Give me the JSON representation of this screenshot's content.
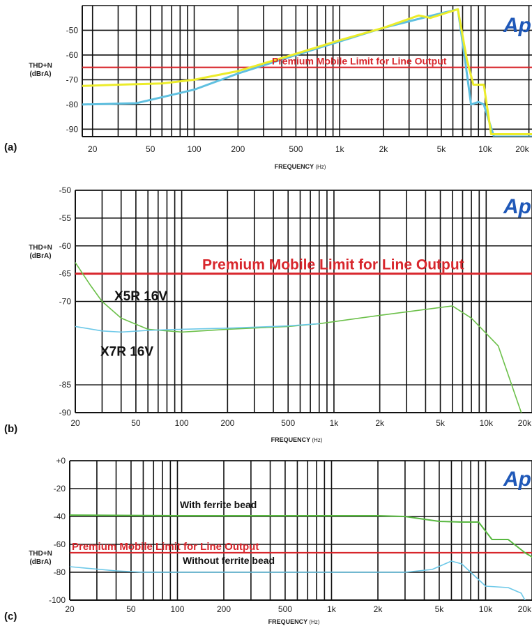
{
  "chart_data": [
    {
      "panel_label": "(a)",
      "type": "line",
      "log_x": true,
      "xlim": [
        17,
        21000
      ],
      "ylim": [
        -93,
        -40
      ],
      "xticks": [
        {
          "v": 20,
          "t": "20"
        },
        {
          "v": 50,
          "t": "50"
        },
        {
          "v": 100,
          "t": "100"
        },
        {
          "v": 200,
          "t": "200"
        },
        {
          "v": 500,
          "t": "500"
        },
        {
          "v": 1000,
          "t": "1k"
        },
        {
          "v": 2000,
          "t": "2k"
        },
        {
          "v": 5000,
          "t": "5k"
        },
        {
          "v": 10000,
          "t": "10k"
        },
        {
          "v": 20000,
          "t": "20k"
        }
      ],
      "yticks": [
        {
          "v": -50,
          "t": "-50"
        },
        {
          "v": -60,
          "t": "-60"
        },
        {
          "v": -70,
          "t": "-70"
        },
        {
          "v": -80,
          "t": "-80"
        },
        {
          "v": -90,
          "t": "-90"
        }
      ],
      "ylabel_line1": "THD+N",
      "ylabel_line2": "(dBrA)",
      "xlabel_main": "FREQUENCY",
      "xlabel_unit": "(Hz)",
      "logo": "Ap",
      "limit": {
        "value": -65,
        "label": "Premium Mobile Limit for Line Output",
        "label_x": 390,
        "label_size": 14
      },
      "series": [
        {
          "color": "#5fc0e0",
          "width": 3,
          "points": [
            [
              17,
              -80
            ],
            [
              40,
              -79.5
            ],
            [
              100,
              -74
            ],
            [
              200,
              -67.5
            ],
            [
              500,
              -60
            ],
            [
              1000,
              -54.5
            ],
            [
              2000,
              -49
            ],
            [
              4000,
              -44.5
            ],
            [
              6500,
              -41.5
            ],
            [
              7200,
              -60
            ],
            [
              8000,
              -80
            ],
            [
              9000,
              -79
            ],
            [
              9800,
              -80
            ],
            [
              11500,
              -93
            ],
            [
              21000,
              -93
            ]
          ]
        },
        {
          "color": "#ecec2a",
          "width": 3,
          "points": [
            [
              17,
              -72.5
            ],
            [
              30,
              -72
            ],
            [
              60,
              -71.5
            ],
            [
              100,
              -70
            ],
            [
              200,
              -66.5
            ],
            [
              500,
              -59.5
            ],
            [
              1000,
              -54
            ],
            [
              2000,
              -49
            ],
            [
              3500,
              -44
            ],
            [
              4200,
              -45
            ],
            [
              6500,
              -41.5
            ],
            [
              7500,
              -62
            ],
            [
              8300,
              -72
            ],
            [
              9800,
              -72
            ],
            [
              11000,
              -92
            ],
            [
              21000,
              -92
            ]
          ]
        }
      ]
    },
    {
      "panel_label": "(b)",
      "type": "line",
      "log_x": true,
      "xlim": [
        20,
        20000
      ],
      "ylim": [
        -90,
        -50
      ],
      "xticks": [
        {
          "v": 20,
          "t": "20"
        },
        {
          "v": 50,
          "t": "50"
        },
        {
          "v": 100,
          "t": "100"
        },
        {
          "v": 200,
          "t": "200"
        },
        {
          "v": 500,
          "t": "500"
        },
        {
          "v": 1000,
          "t": "1k"
        },
        {
          "v": 2000,
          "t": "2k"
        },
        {
          "v": 5000,
          "t": "5k"
        },
        {
          "v": 10000,
          "t": "10k"
        },
        {
          "v": 20000,
          "t": "20k"
        }
      ],
      "yticks": [
        {
          "v": -50,
          "t": "-50"
        },
        {
          "v": -55,
          "t": "-55"
        },
        {
          "v": -60,
          "t": "-60"
        },
        {
          "v": -65,
          "t": "-65"
        },
        {
          "v": -70,
          "t": "-70"
        },
        {
          "v": -85,
          "t": "-85"
        },
        {
          "v": -90,
          "t": "-90"
        }
      ],
      "ylabel_line1": "THD+N",
      "ylabel_line2": "(dBrA)",
      "xlabel_main": "FREQUENCY",
      "xlabel_unit": "(Hz)",
      "logo": "Ap",
      "limit": {
        "value": -65,
        "label": "Premium Mobile Limit for Line Output",
        "label_x": 290,
        "label_size": 21
      },
      "annotations": [
        {
          "text": "X5R 16V",
          "x": 28,
          "y": -69.8
        },
        {
          "text": "X7R 16V",
          "x": 28,
          "y": -79.8
        }
      ],
      "series": [
        {
          "color": "#6cc04a",
          "width": 1.6,
          "points": [
            [
              20,
              -63
            ],
            [
              25,
              -67
            ],
            [
              30,
              -70
            ],
            [
              40,
              -73
            ],
            [
              60,
              -75
            ],
            [
              100,
              -75.5
            ],
            [
              200,
              -75
            ],
            [
              500,
              -74.5
            ],
            [
              800,
              -74
            ],
            [
              2000,
              -72.5
            ],
            [
              6000,
              -70.8
            ],
            [
              8000,
              -73
            ],
            [
              12000,
              -78
            ],
            [
              17000,
              -90
            ]
          ]
        },
        {
          "color": "#6cc8e8",
          "width": 1.6,
          "points": [
            [
              20,
              -74.5
            ],
            [
              30,
              -75.3
            ],
            [
              40,
              -75.5
            ],
            [
              60,
              -75.2
            ],
            [
              100,
              -75
            ],
            [
              200,
              -74.8
            ],
            [
              500,
              -74.4
            ],
            [
              800,
              -74
            ]
          ]
        }
      ]
    },
    {
      "panel_label": "(c)",
      "type": "line",
      "log_x": true,
      "xlim": [
        20,
        20000
      ],
      "ylim": [
        -100,
        0
      ],
      "xticks": [
        {
          "v": 20,
          "t": "20"
        },
        {
          "v": 50,
          "t": "50"
        },
        {
          "v": 100,
          "t": "100"
        },
        {
          "v": 200,
          "t": "200"
        },
        {
          "v": 500,
          "t": "500"
        },
        {
          "v": 1000,
          "t": "1k"
        },
        {
          "v": 2000,
          "t": "2k"
        },
        {
          "v": 5000,
          "t": "5k"
        },
        {
          "v": 10000,
          "t": "10k"
        },
        {
          "v": 20000,
          "t": "20k"
        }
      ],
      "yticks": [
        {
          "v": 0,
          "t": "+0"
        },
        {
          "v": -20,
          "t": "-20"
        },
        {
          "v": -40,
          "t": "-40"
        },
        {
          "v": -60,
          "t": "-60"
        },
        {
          "v": -80,
          "t": "-80"
        },
        {
          "v": -100,
          "t": "-100"
        }
      ],
      "ylabel_line1": "THD+N",
      "ylabel_line2": "(dBrA)",
      "xlabel_main": "FREQUENCY",
      "xlabel_unit": "(Hz)",
      "logo": "Ap",
      "limit": {
        "value": -66,
        "label": "Premium Mobile Limit for Line Output",
        "label_x": 103,
        "label_size": 15
      },
      "annotations": [
        {
          "text": "With ferrite bead",
          "x": 95,
          "y": -34
        },
        {
          "text": "Without ferrite bead",
          "x": 95,
          "y": -74
        }
      ],
      "series": [
        {
          "color": "#58b840",
          "width": 2,
          "points": [
            [
              20,
              -39
            ],
            [
              100,
              -39.5
            ],
            [
              500,
              -39.5
            ],
            [
              2000,
              -39.5
            ],
            [
              3000,
              -40
            ],
            [
              4000,
              -42
            ],
            [
              5000,
              -43.5
            ],
            [
              7000,
              -44
            ],
            [
              9000,
              -44
            ],
            [
              11000,
              -56.5
            ],
            [
              14000,
              -56.5
            ],
            [
              18000,
              -66
            ],
            [
              20000,
              -69
            ]
          ]
        },
        {
          "color": "#6cc8e8",
          "width": 1.6,
          "points": [
            [
              20,
              -76
            ],
            [
              40,
              -79
            ],
            [
              60,
              -80
            ],
            [
              100,
              -80
            ],
            [
              500,
              -80
            ],
            [
              1000,
              -80
            ],
            [
              2000,
              -80
            ],
            [
              3000,
              -80
            ],
            [
              4500,
              -78
            ],
            [
              6000,
              -72
            ],
            [
              7000,
              -74
            ],
            [
              8000,
              -80
            ],
            [
              10000,
              -90
            ],
            [
              14000,
              -91
            ],
            [
              17000,
              -95
            ],
            [
              18000,
              -100
            ]
          ]
        }
      ]
    }
  ],
  "colors": {
    "limit_line": "#d8262c",
    "logo": "#1f58b8",
    "grid": "#111111"
  }
}
